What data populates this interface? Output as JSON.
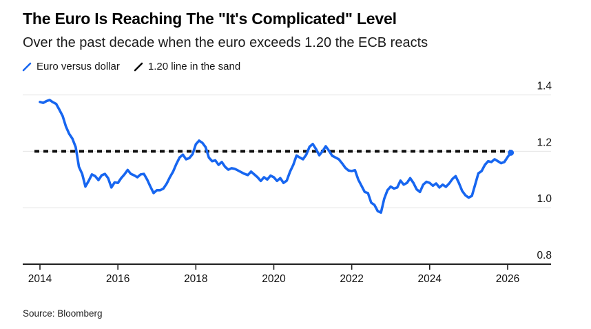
{
  "header": {
    "title": "The Euro Is Reaching The \"It's Complicated\" Level",
    "subtitle": "Over the past decade when the euro exceeds 1.20 the ECB reacts"
  },
  "legend": {
    "items": [
      {
        "label": "Euro versus dollar",
        "color": "#1766f0"
      },
      {
        "label": "1.20 line in the sand",
        "color": "#0d0d0d"
      }
    ]
  },
  "source": "Source: Bloomberg",
  "colors": {
    "line_blue": "#1766f0",
    "reference_black": "#0d0d0d",
    "axis": "#1f1f1f",
    "gridline": "#e9e9e9",
    "text": "#101010",
    "background": "#ffffff"
  },
  "chart_data": {
    "type": "line",
    "title": "The Euro Is Reaching The \"It's Complicated\" Level",
    "subtitle": "Over the past decade when the euro exceeds 1.20 the ECB reacts",
    "xlabel": "",
    "ylabel": "",
    "x_unit": "year",
    "x_start": 2014.0,
    "x_interval_months": 1,
    "x_ticks": [
      2014,
      2016,
      2018,
      2020,
      2022,
      2024,
      2026
    ],
    "y_ticks": [
      0.8,
      1.0,
      1.2,
      1.4
    ],
    "xlim": [
      2013.55,
      2027.1
    ],
    "ylim": [
      0.8,
      1.455
    ],
    "grid": "horizontal",
    "legend_position": "top-left",
    "reference_line": {
      "value": 1.2,
      "label": "1.20 line in the sand",
      "style": "dotted"
    },
    "series": [
      {
        "name": "Euro versus dollar",
        "color": "#1766f0",
        "end_marker": true,
        "values": [
          1.375,
          1.372,
          1.378,
          1.382,
          1.374,
          1.368,
          1.347,
          1.325,
          1.288,
          1.262,
          1.245,
          1.215,
          1.145,
          1.12,
          1.075,
          1.095,
          1.118,
          1.112,
          1.098,
          1.115,
          1.12,
          1.105,
          1.072,
          1.09,
          1.088,
          1.105,
          1.118,
          1.134,
          1.12,
          1.115,
          1.108,
          1.118,
          1.12,
          1.1,
          1.075,
          1.052,
          1.062,
          1.062,
          1.068,
          1.085,
          1.108,
          1.128,
          1.155,
          1.178,
          1.188,
          1.172,
          1.176,
          1.19,
          1.225,
          1.238,
          1.23,
          1.215,
          1.178,
          1.165,
          1.168,
          1.152,
          1.162,
          1.145,
          1.135,
          1.14,
          1.138,
          1.132,
          1.126,
          1.12,
          1.116,
          1.128,
          1.118,
          1.108,
          1.095,
          1.108,
          1.1,
          1.114,
          1.108,
          1.095,
          1.105,
          1.088,
          1.096,
          1.128,
          1.152,
          1.185,
          1.178,
          1.172,
          1.188,
          1.216,
          1.226,
          1.208,
          1.186,
          1.2,
          1.218,
          1.202,
          1.184,
          1.178,
          1.172,
          1.158,
          1.142,
          1.132,
          1.13,
          1.133,
          1.1,
          1.078,
          1.056,
          1.052,
          1.018,
          1.01,
          0.988,
          0.983,
          1.032,
          1.062,
          1.075,
          1.068,
          1.072,
          1.096,
          1.082,
          1.088,
          1.105,
          1.088,
          1.065,
          1.056,
          1.082,
          1.092,
          1.088,
          1.078,
          1.086,
          1.072,
          1.082,
          1.074,
          1.086,
          1.102,
          1.112,
          1.088,
          1.06,
          1.044,
          1.036,
          1.042,
          1.082,
          1.122,
          1.13,
          1.152,
          1.165,
          1.162,
          1.172,
          1.165,
          1.158,
          1.162,
          1.18,
          1.195
        ]
      }
    ]
  }
}
